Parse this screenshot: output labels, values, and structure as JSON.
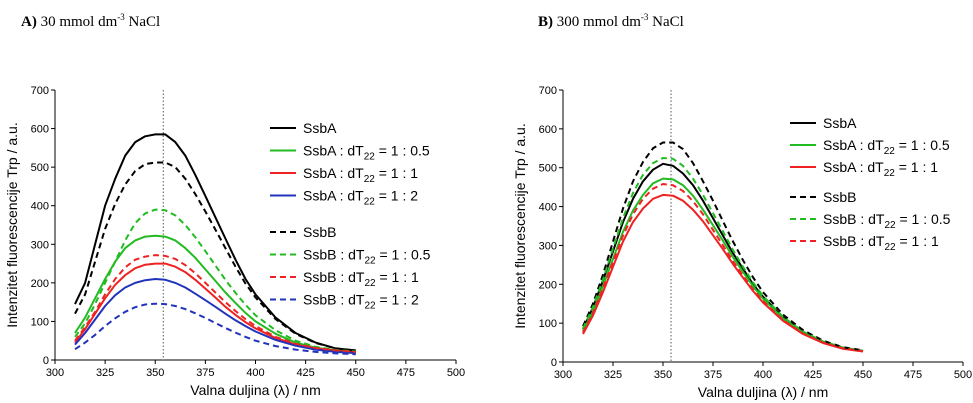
{
  "panels": [
    {
      "letter": "A)",
      "text": "30 mmol dm",
      "sup": "-3",
      "text2": " NaCl"
    },
    {
      "letter": "B)",
      "text": "300 mmol dm",
      "sup": "-3",
      "text2": " NaCl"
    }
  ],
  "chart_data": [
    {
      "type": "line",
      "xlabel": "Valna duljina (λ) / nm",
      "ylabel": "Intenzitet fluorescencije Trp / a.u.",
      "xlim": [
        300,
        500
      ],
      "ylim": [
        0,
        700
      ],
      "xticks": [
        300,
        325,
        350,
        375,
        400,
        425,
        450,
        475,
        500
      ],
      "yticks": [
        0,
        100,
        200,
        300,
        400,
        500,
        600,
        700
      ],
      "vline": 354,
      "x": [
        310,
        315,
        320,
        325,
        330,
        335,
        340,
        345,
        350,
        355,
        360,
        365,
        370,
        375,
        380,
        385,
        390,
        395,
        400,
        410,
        420,
        430,
        440,
        450
      ],
      "legend_position": "right",
      "series": [
        {
          "name": "SsbA",
          "sub": "",
          "ratio": "",
          "color": "#000000",
          "dash": false,
          "values": [
            145,
            200,
            300,
            400,
            470,
            530,
            565,
            580,
            585,
            585,
            565,
            530,
            480,
            425,
            370,
            315,
            260,
            210,
            170,
            110,
            70,
            45,
            30,
            25
          ]
        },
        {
          "name": "SsbA : dT",
          "sub": "22",
          "ratio": " = 1 : 0.5",
          "color": "#22bb22",
          "dash": false,
          "values": [
            70,
            110,
            160,
            210,
            255,
            290,
            310,
            320,
            322,
            320,
            310,
            290,
            265,
            235,
            205,
            175,
            148,
            122,
            100,
            68,
            45,
            32,
            25,
            22
          ]
        },
        {
          "name": "SsbA : dT",
          "sub": "22",
          "ratio": " = 1 : 1",
          "color": "#ee2222",
          "dash": false,
          "values": [
            45,
            80,
            120,
            160,
            195,
            220,
            238,
            247,
            250,
            250,
            242,
            228,
            208,
            185,
            162,
            138,
            117,
            98,
            82,
            57,
            40,
            30,
            24,
            20
          ]
        },
        {
          "name": "SsbA : dT",
          "sub": "22",
          "ratio": " = 1 : 2",
          "color": "#2233bb",
          "dash": false,
          "values": [
            40,
            70,
            105,
            140,
            168,
            188,
            200,
            207,
            210,
            208,
            200,
            188,
            172,
            155,
            138,
            120,
            103,
            88,
            74,
            52,
            37,
            27,
            21,
            18
          ]
        },
        {
          "name": "SsbB",
          "sub": "",
          "ratio": "",
          "color": "#000000",
          "dash": true,
          "values": [
            120,
            170,
            255,
            340,
            405,
            455,
            490,
            508,
            512,
            512,
            500,
            470,
            430,
            385,
            338,
            290,
            242,
            198,
            162,
            106,
            68,
            44,
            30,
            24
          ]
        },
        {
          "name": "SsbB : dT",
          "sub": "22",
          "ratio": " = 1 : 0.5",
          "color": "#22bb22",
          "dash": true,
          "values": [
            60,
            95,
            145,
            200,
            255,
            310,
            355,
            380,
            390,
            388,
            375,
            350,
            318,
            282,
            245,
            208,
            174,
            143,
            116,
            77,
            50,
            34,
            26,
            22
          ]
        },
        {
          "name": "SsbB : dT",
          "sub": "22",
          "ratio": " = 1 : 1",
          "color": "#ee2222",
          "dash": true,
          "values": [
            50,
            85,
            125,
            170,
            210,
            240,
            260,
            268,
            272,
            270,
            262,
            246,
            225,
            200,
            175,
            150,
            127,
            106,
            88,
            60,
            42,
            31,
            25,
            21
          ]
        },
        {
          "name": "SsbB : dT",
          "sub": "22",
          "ratio": " = 1 : 2",
          "color": "#2233bb",
          "dash": true,
          "values": [
            28,
            45,
            65,
            88,
            108,
            125,
            137,
            144,
            146,
            145,
            140,
            132,
            121,
            109,
            96,
            83,
            71,
            60,
            50,
            36,
            27,
            21,
            17,
            15
          ]
        }
      ]
    },
    {
      "type": "line",
      "xlabel": "Valna duljina (λ) / nm",
      "ylabel": "Intenzitet fluorescencije Trp / a.u.",
      "xlim": [
        300,
        500
      ],
      "ylim": [
        0,
        700
      ],
      "xticks": [
        300,
        325,
        350,
        375,
        400,
        425,
        450,
        475,
        500
      ],
      "yticks": [
        0,
        100,
        200,
        300,
        400,
        500,
        600,
        700
      ],
      "vline": 354,
      "x": [
        310,
        315,
        320,
        325,
        330,
        335,
        340,
        345,
        350,
        355,
        360,
        365,
        370,
        375,
        380,
        385,
        390,
        395,
        400,
        410,
        420,
        430,
        440,
        450
      ],
      "legend_position": "right",
      "series": [
        {
          "name": "SsbA",
          "sub": "",
          "ratio": "",
          "color": "#000000",
          "dash": false,
          "values": [
            85,
            140,
            210,
            285,
            360,
            420,
            465,
            495,
            510,
            505,
            485,
            455,
            415,
            370,
            325,
            280,
            240,
            200,
            168,
            115,
            78,
            52,
            36,
            28
          ]
        },
        {
          "name": "SsbA : dT",
          "sub": "22",
          "ratio": " = 1 : 0.5",
          "color": "#22bb22",
          "dash": false,
          "values": [
            80,
            130,
            195,
            265,
            335,
            390,
            430,
            460,
            472,
            470,
            455,
            428,
            392,
            352,
            312,
            270,
            232,
            195,
            163,
            112,
            76,
            51,
            35,
            28
          ]
        },
        {
          "name": "SsbA : dT",
          "sub": "22",
          "ratio": " = 1 : 1",
          "color": "#ee2222",
          "dash": false,
          "values": [
            72,
            120,
            180,
            245,
            310,
            360,
            395,
            420,
            430,
            428,
            415,
            392,
            362,
            326,
            290,
            252,
            217,
            183,
            153,
            106,
            72,
            49,
            34,
            27
          ]
        },
        {
          "name": "SsbB",
          "sub": "",
          "ratio": "",
          "color": "#000000",
          "dash": true,
          "values": [
            92,
            150,
            225,
            310,
            395,
            465,
            515,
            550,
            565,
            565,
            548,
            512,
            465,
            415,
            362,
            310,
            262,
            218,
            180,
            122,
            82,
            55,
            38,
            30
          ]
        },
        {
          "name": "SsbB : dT",
          "sub": "22",
          "ratio": " = 1 : 0.5",
          "color": "#22bb22",
          "dash": true,
          "values": [
            86,
            142,
            212,
            292,
            370,
            435,
            482,
            512,
            525,
            523,
            505,
            472,
            430,
            383,
            336,
            288,
            245,
            205,
            170,
            116,
            78,
            53,
            37,
            29
          ]
        },
        {
          "name": "SsbB : dT",
          "sub": "22",
          "ratio": " = 1 : 1",
          "color": "#ee2222",
          "dash": true,
          "values": [
            76,
            126,
            190,
            258,
            325,
            380,
            420,
            446,
            458,
            455,
            440,
            414,
            380,
            340,
            300,
            260,
            222,
            187,
            157,
            108,
            73,
            50,
            35,
            28
          ]
        }
      ]
    }
  ]
}
